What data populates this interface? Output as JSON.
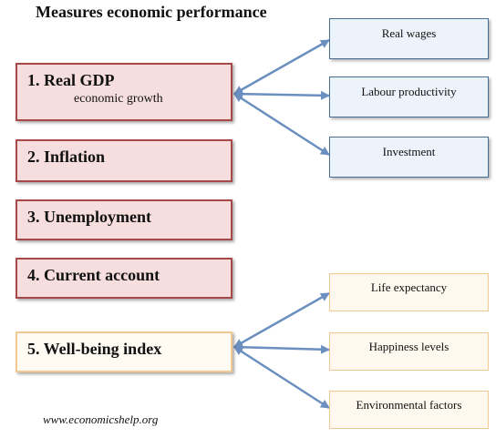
{
  "title": "Measures economic performance",
  "measures": [
    {
      "label": "1. Real GDP",
      "sub": "economic growth"
    },
    {
      "label": "2. Inflation"
    },
    {
      "label": "3. Unemployment"
    },
    {
      "label": "4. Current account"
    },
    {
      "label": "5. Well-being index"
    }
  ],
  "gdp_indicators": [
    "Real wages",
    "Labour productivity",
    "Investment"
  ],
  "wellbeing_indicators": [
    "Life expectancy",
    "Happiness levels",
    "Environmental factors"
  ],
  "footer": "www.economicshelp.org",
  "colors": {
    "measure_fill": "#f6dede",
    "measure_border": "#a84848",
    "wellbeing_fill": "#fffaf2",
    "wellbeing_border": "#f2c992",
    "gdp_box_fill": "#edf3fa",
    "gdp_box_border": "#4a6f96",
    "arrow": "#6b8fbf"
  }
}
